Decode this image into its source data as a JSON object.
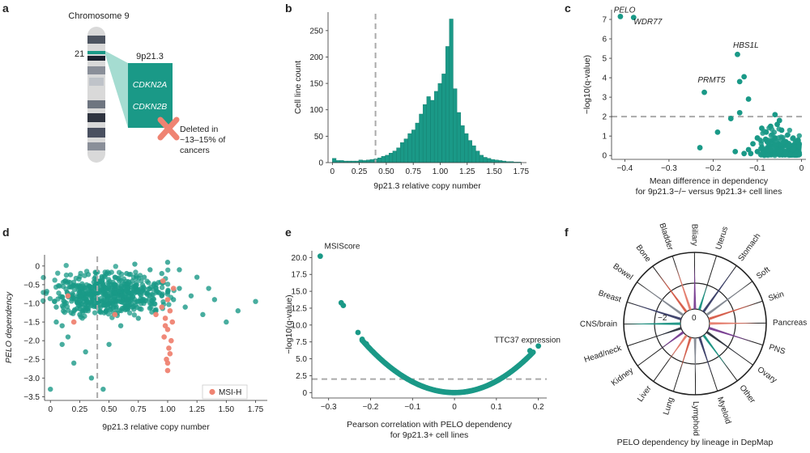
{
  "colors": {
    "teal": "#1a9987",
    "teal_dark": "#127a6b",
    "salmon": "#ef8372",
    "salmon_dark": "#e0604d",
    "grey": "#9a9a9a",
    "dash": "#aaaaaa"
  },
  "panel_a": {
    "letter": "a",
    "title": "Chromosome 9",
    "band_number": "21",
    "locus": "9p21.3",
    "genes": [
      "CDKN2A",
      "CDKN2B"
    ],
    "deleted_line1": "Deleted in",
    "deleted_line2": "~13–15% of",
    "deleted_line3": "cancers"
  },
  "chart_data": [
    {
      "panel": "b",
      "type": "bar",
      "title": "",
      "xlabel": "9p21.3 relative copy number",
      "ylabel": "Cell line count",
      "xlim": [
        -0.04,
        1.8
      ],
      "ylim": [
        0,
        285
      ],
      "xticks": [
        "0",
        "0.25",
        "0.50",
        "0.75",
        "1.00",
        "1.25",
        "1.50",
        "1.75"
      ],
      "xtick_values": [
        0,
        0.25,
        0.5,
        0.75,
        1.0,
        1.25,
        1.5,
        1.75
      ],
      "yticks": [
        0,
        50,
        100,
        150,
        200,
        250
      ],
      "threshold_x": 0.4,
      "bin_width": 0.035,
      "bin_start": 0,
      "values": [
        8,
        4,
        4,
        3,
        3,
        3,
        3,
        5,
        4,
        5,
        6,
        7,
        9,
        12,
        14,
        18,
        22,
        28,
        38,
        45,
        55,
        62,
        75,
        92,
        110,
        125,
        118,
        135,
        150,
        168,
        220,
        272,
        140,
        95,
        70,
        55,
        42,
        32,
        22,
        14,
        10,
        8,
        6,
        5,
        4,
        3,
        2,
        2,
        1,
        1
      ]
    },
    {
      "panel": "c",
      "type": "scatter",
      "xlabel": "Mean difference in dependency",
      "xlabel2": "for 9p21.3−/− versus 9p21.3+ cell lines",
      "ylabel": "−log10(q-value)",
      "xlim": [
        -0.43,
        0.01
      ],
      "ylim": [
        -0.2,
        7.5
      ],
      "xticks": [
        "−0.4",
        "−0.3",
        "−0.2",
        "−0.1",
        "0"
      ],
      "xtick_values": [
        -0.4,
        -0.3,
        -0.2,
        -0.1,
        0
      ],
      "yticks": [
        0,
        1,
        2,
        3,
        4,
        5,
        6,
        7
      ],
      "threshold_y": 2,
      "labels": [
        "PELO",
        "WDR77",
        "HBS1L",
        "PRMT5"
      ],
      "points": [
        [
          -0.41,
          7.15
        ],
        [
          -0.38,
          7.1
        ],
        [
          -0.145,
          5.2
        ],
        [
          -0.22,
          3.25
        ],
        [
          -0.13,
          4.05
        ],
        [
          -0.14,
          3.8
        ],
        [
          -0.12,
          2.9
        ],
        [
          -0.14,
          2.2
        ],
        [
          -0.06,
          2.1
        ],
        [
          -0.16,
          1.9
        ],
        [
          -0.19,
          1.2
        ],
        [
          -0.23,
          0.4
        ],
        [
          -0.09,
          1.4
        ],
        [
          -0.07,
          1.5
        ],
        [
          -0.08,
          1.2
        ],
        [
          -0.055,
          1.6
        ],
        [
          -0.05,
          1.8
        ],
        [
          -0.045,
          1.3
        ],
        [
          -0.1,
          0.9
        ],
        [
          -0.11,
          0.6
        ],
        [
          -0.12,
          0.3
        ],
        [
          -0.15,
          0.2
        ],
        [
          -0.13,
          0.1
        ],
        [
          -0.08,
          0.8
        ],
        [
          -0.06,
          0.9
        ],
        [
          -0.04,
          0.7
        ],
        [
          -0.03,
          0.5
        ],
        [
          -0.02,
          0.3
        ],
        [
          -0.01,
          0.15
        ],
        [
          -0.09,
          0.4
        ],
        [
          -0.07,
          0.3
        ],
        [
          -0.05,
          0.2
        ],
        [
          -0.035,
          0.1
        ],
        [
          -0.025,
          0.05
        ],
        [
          -0.06,
          0.55
        ],
        [
          -0.075,
          0.65
        ],
        [
          -0.1,
          0.2
        ],
        [
          -0.115,
          0.1
        ],
        [
          -0.005,
          0.05
        ],
        [
          -0.015,
          0.02
        ]
      ]
    },
    {
      "panel": "d",
      "type": "scatter",
      "xlabel": "9p21.3 relative copy number",
      "ylabel": "PELO dependency",
      "xlim": [
        -0.05,
        1.85
      ],
      "ylim": [
        -3.6,
        0.3
      ],
      "xticks": [
        "0",
        "0.25",
        "0.50",
        "0.75",
        "1.00",
        "1.25",
        "1.50",
        "1.75"
      ],
      "xtick_values": [
        0,
        0.25,
        0.5,
        0.75,
        1.0,
        1.25,
        1.5,
        1.75
      ],
      "yticks": [
        "0",
        "−0.5",
        "−1.0",
        "−1.5",
        "−2.0",
        "−2.5",
        "−3.0",
        "−3.5"
      ],
      "ytick_values": [
        0,
        -0.5,
        -1.0,
        -1.5,
        -2.0,
        -2.5,
        -3.0,
        -3.5
      ],
      "threshold_x": 0.4,
      "legend": "MSI-H",
      "msi_points": [
        [
          1.0,
          -0.9
        ],
        [
          1.02,
          -1.2
        ],
        [
          0.98,
          -1.4
        ],
        [
          1.0,
          -1.7
        ],
        [
          1.03,
          -2.0
        ],
        [
          1.01,
          -2.2
        ],
        [
          0.99,
          -2.5
        ],
        [
          1.0,
          -2.8
        ],
        [
          0.97,
          -1.9
        ],
        [
          1.04,
          -1.5
        ],
        [
          0.95,
          -1.1
        ],
        [
          0.9,
          -1.3
        ],
        [
          0.2,
          -1.5
        ],
        [
          0.15,
          -0.8
        ],
        [
          0.55,
          -1.3
        ],
        [
          1.05,
          -0.6
        ],
        [
          0.96,
          -0.4
        ],
        [
          1.0,
          -2.6
        ],
        [
          1.02,
          -2.35
        ],
        [
          0.98,
          -1.6
        ]
      ],
      "other_points": [
        [
          0,
          -3.3
        ],
        [
          0.05,
          -1.1
        ],
        [
          0.1,
          -1.6
        ],
        [
          0.15,
          -1.9
        ],
        [
          0.2,
          -2.6
        ],
        [
          0.25,
          -0.7
        ],
        [
          0.3,
          -1.2
        ],
        [
          0.35,
          -3.0
        ],
        [
          0.4,
          -0.9
        ],
        [
          0.45,
          -0.5
        ],
        [
          0.5,
          -1.0
        ],
        [
          0.55,
          -0.6
        ],
        [
          0.6,
          -0.8
        ],
        [
          0.65,
          -0.9
        ],
        [
          0.7,
          -0.4
        ],
        [
          0.75,
          -0.7
        ],
        [
          0.8,
          -0.6
        ],
        [
          0.85,
          -1.0
        ],
        [
          0.9,
          -0.5
        ],
        [
          0.95,
          -0.8
        ],
        [
          1.0,
          -0.7
        ],
        [
          1.05,
          -0.9
        ],
        [
          1.1,
          -0.6
        ],
        [
          1.15,
          -1.1
        ],
        [
          1.2,
          -0.8
        ],
        [
          1.3,
          -1.3
        ],
        [
          1.4,
          -0.9
        ],
        [
          1.5,
          -1.5
        ],
        [
          1.6,
          -1.2
        ],
        [
          1.75,
          -0.95
        ],
        [
          0.7,
          -1.1
        ],
        [
          0.8,
          -0.3
        ],
        [
          0.9,
          -1.2
        ],
        [
          0.95,
          -0.2
        ],
        [
          1.1,
          -0.1
        ],
        [
          0.6,
          -1.6
        ],
        [
          0.5,
          -2.1
        ],
        [
          0.75,
          -1.4
        ],
        [
          0.85,
          -0.1
        ],
        [
          0.65,
          -0.2
        ],
        [
          1.25,
          -0.3
        ],
        [
          1.35,
          -0.6
        ],
        [
          0.45,
          -3.3
        ],
        [
          0.3,
          -2.3
        ],
        [
          0.1,
          -2.1
        ],
        [
          0.05,
          -1.5
        ],
        [
          0.25,
          -1.3
        ],
        [
          0.55,
          -0.3
        ],
        [
          0.72,
          0.05
        ],
        [
          1.0,
          0.1
        ]
      ]
    },
    {
      "panel": "e",
      "type": "scatter",
      "xlabel": "Pearson correlation with PELO dependency",
      "xlabel2": "for 9p21.3+ cell lines",
      "ylabel": "−log10(q-value)",
      "xlim": [
        -0.34,
        0.22
      ],
      "ylim": [
        -0.8,
        21
      ],
      "xticks": [
        "−0.3",
        "−0.2",
        "−0.1",
        "0",
        "0.1",
        "0.2"
      ],
      "xtick_values": [
        -0.3,
        -0.2,
        -0.1,
        0,
        0.1,
        0.2
      ],
      "yticks": [
        "0",
        "2.5",
        "5.0",
        "7.5",
        "10.0",
        "12.5",
        "15.0",
        "17.5",
        "20.0"
      ],
      "ytick_values": [
        0,
        2.5,
        5,
        7.5,
        10,
        12.5,
        15,
        17.5,
        20
      ],
      "threshold_y": 2,
      "labels": [
        "MSIScore",
        "TTC37 expression"
      ],
      "points": [
        [
          -0.32,
          20.2
        ],
        [
          -0.27,
          13.3
        ],
        [
          -0.265,
          12.9
        ],
        [
          -0.23,
          8.9
        ],
        [
          -0.22,
          7.9
        ],
        [
          0.2,
          6.9
        ],
        [
          -0.21,
          7.2
        ],
        [
          0.18,
          6.2
        ]
      ]
    },
    {
      "panel": "f",
      "type": "radial",
      "title": "PELO dependency by lineage in DepMap",
      "ring_ticks": [
        "−2",
        "0"
      ],
      "lineages": [
        "Uterus",
        "Stomach",
        "Soft",
        "Skin",
        "Pancreas",
        "PNS",
        "Ovary",
        "Other",
        "Myeloid",
        "Lymphoid",
        "Lung",
        "Liver",
        "Kidney",
        "Head/neck",
        "CNS/brain",
        "Breast",
        "Bowel",
        "Bone",
        "Bladder",
        "Biliary"
      ]
    }
  ]
}
